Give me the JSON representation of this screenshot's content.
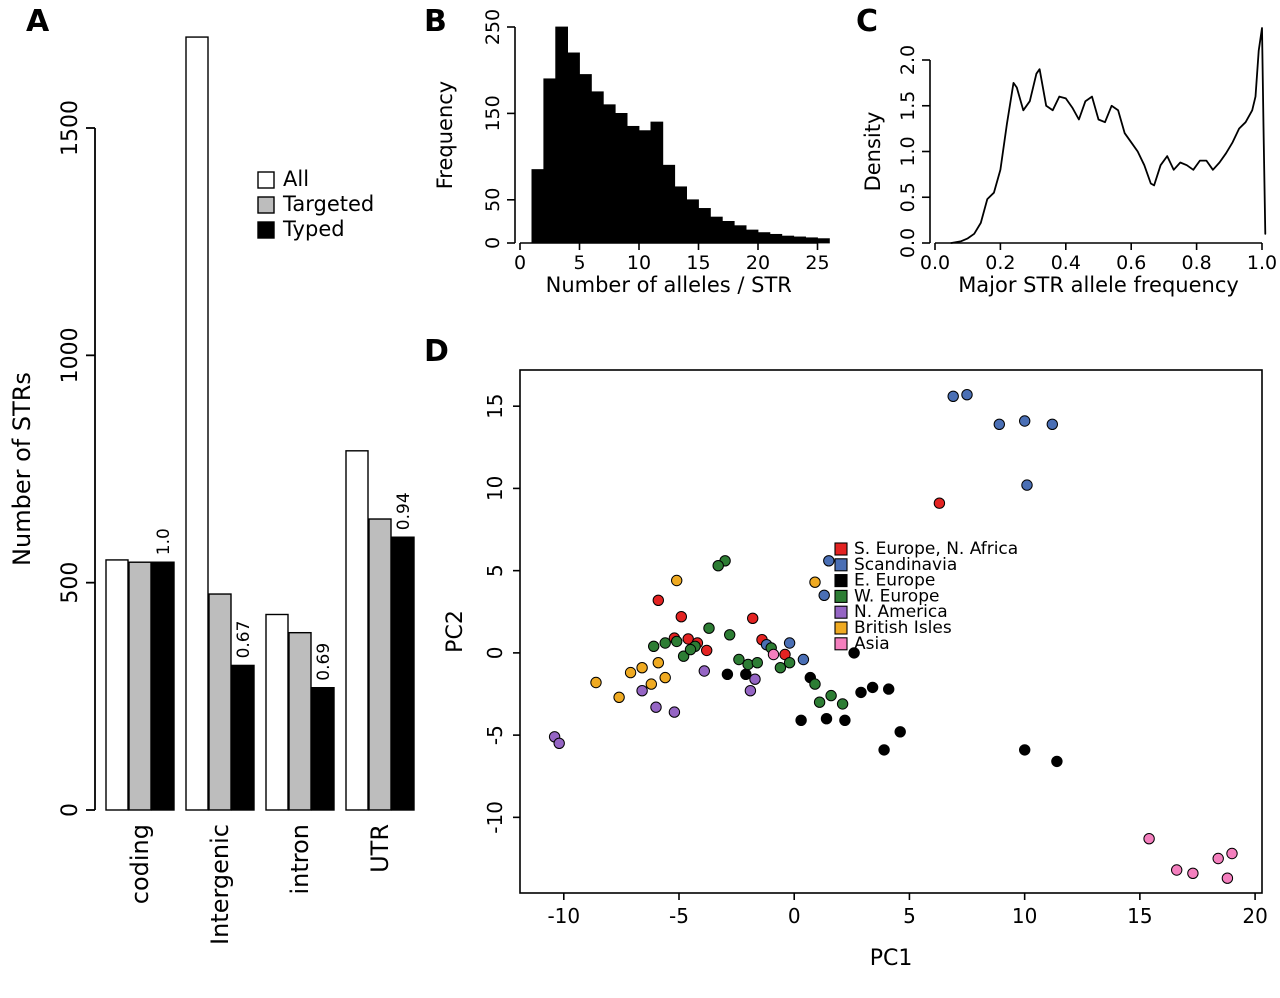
{
  "panel_labels": {
    "A": "A",
    "B": "B",
    "C": "C",
    "D": "D"
  },
  "chart_data": [
    {
      "id": "A",
      "type": "bar",
      "title": "",
      "xlabel": "",
      "ylabel": "Number of STRs",
      "categories": [
        "coding",
        "Intergenic",
        "intron",
        "UTR"
      ],
      "series": [
        {
          "name": "All",
          "color": "#ffffff",
          "values": [
            550,
            1700,
            430,
            790
          ]
        },
        {
          "name": "Targeted",
          "color": "#bdbdbd",
          "values": [
            545,
            475,
            390,
            640
          ]
        },
        {
          "name": "Typed",
          "color": "#000000",
          "values": [
            545,
            318,
            269,
            600
          ]
        }
      ],
      "ratio_annotations": [
        "1.0",
        "0.67",
        "0.69",
        "0.94"
      ],
      "yticks": [
        0,
        500,
        1000,
        1500
      ],
      "ylim": [
        0,
        1500
      ],
      "legend_position": "upper-left-inset"
    },
    {
      "id": "B",
      "type": "histogram",
      "title": "",
      "xlabel": "Number of alleles / STR",
      "ylabel": "Frequency",
      "bin_start": 1,
      "bin_width": 1,
      "counts": [
        85,
        190,
        250,
        220,
        195,
        175,
        160,
        150,
        135,
        130,
        140,
        90,
        65,
        50,
        40,
        30,
        25,
        20,
        15,
        12,
        10,
        8,
        7,
        6,
        5
      ],
      "xticks": [
        0,
        5,
        10,
        15,
        20,
        25
      ],
      "yticks": [
        0,
        50,
        150,
        250
      ],
      "xlim": [
        0,
        26
      ],
      "ylim": [
        0,
        255
      ],
      "bar_color": "#000000"
    },
    {
      "id": "C",
      "type": "line",
      "title": "",
      "xlabel": "Major STR allele frequency",
      "ylabel": "Density",
      "xticks": [
        0,
        0.2,
        0.4,
        0.6,
        0.8,
        1
      ],
      "xtick_labels": [
        "0.0",
        "0.2",
        "0.4",
        "0.6",
        "0.8",
        "1.0"
      ],
      "yticks": [
        0,
        0.5,
        1,
        1.5,
        2
      ],
      "ytick_labels": [
        "0.0",
        "0.5",
        "1.0",
        "1.5",
        "2.0"
      ],
      "xlim": [
        0,
        1.02
      ],
      "ylim": [
        0,
        2.4
      ],
      "line_color": "#000000",
      "x": [
        0.05,
        0.08,
        0.1,
        0.12,
        0.14,
        0.16,
        0.18,
        0.2,
        0.22,
        0.24,
        0.25,
        0.27,
        0.29,
        0.31,
        0.32,
        0.34,
        0.36,
        0.38,
        0.4,
        0.42,
        0.44,
        0.46,
        0.48,
        0.5,
        0.52,
        0.54,
        0.56,
        0.58,
        0.6,
        0.62,
        0.64,
        0.66,
        0.67,
        0.69,
        0.71,
        0.73,
        0.75,
        0.77,
        0.79,
        0.81,
        0.83,
        0.85,
        0.87,
        0.89,
        0.91,
        0.93,
        0.95,
        0.97,
        0.98,
        0.99,
        1.0,
        1.005,
        1.01
      ],
      "y": [
        0.0,
        0.02,
        0.05,
        0.1,
        0.22,
        0.48,
        0.55,
        0.8,
        1.3,
        1.75,
        1.7,
        1.45,
        1.55,
        1.85,
        1.9,
        1.5,
        1.45,
        1.6,
        1.58,
        1.48,
        1.35,
        1.55,
        1.6,
        1.35,
        1.32,
        1.5,
        1.45,
        1.2,
        1.1,
        1.0,
        0.85,
        0.65,
        0.63,
        0.85,
        0.95,
        0.8,
        0.88,
        0.85,
        0.8,
        0.9,
        0.9,
        0.8,
        0.88,
        0.98,
        1.1,
        1.25,
        1.32,
        1.45,
        1.6,
        2.1,
        2.35,
        1.2,
        0.1
      ]
    },
    {
      "id": "D",
      "type": "scatter",
      "title": "",
      "xlabel": "PC1",
      "ylabel": "PC2",
      "xticks": [
        -10,
        -5,
        0,
        5,
        10,
        15,
        20
      ],
      "yticks": [
        -10,
        -5,
        0,
        5,
        10,
        15
      ],
      "xlim": [
        -11.9,
        20.3
      ],
      "ylim": [
        -14.6,
        17.2
      ],
      "point_outline": "#000000",
      "groups": [
        {
          "name": "S. Europe, N. Africa",
          "color": "#e32322",
          "points": [
            [
              -5.9,
              3.2
            ],
            [
              -4.9,
              2.2
            ],
            [
              -5.2,
              0.9
            ],
            [
              -4.6,
              0.85
            ],
            [
              -4.2,
              0.6
            ],
            [
              -3.8,
              0.15
            ],
            [
              -1.8,
              2.1
            ],
            [
              -1.4,
              0.8
            ],
            [
              -0.4,
              -0.1
            ],
            [
              6.3,
              9.1
            ]
          ]
        },
        {
          "name": "Scandinavia",
          "color": "#4a6fb5",
          "points": [
            [
              6.9,
              15.6
            ],
            [
              7.5,
              15.7
            ],
            [
              8.9,
              13.9
            ],
            [
              10.0,
              14.1
            ],
            [
              11.2,
              13.9
            ],
            [
              10.1,
              10.2
            ],
            [
              1.5,
              5.6
            ],
            [
              1.3,
              3.5
            ],
            [
              -0.2,
              0.6
            ],
            [
              0.4,
              -0.4
            ],
            [
              -1.2,
              0.5
            ]
          ]
        },
        {
          "name": "E. Europe",
          "color": "#000000",
          "points": [
            [
              -2.9,
              -1.3
            ],
            [
              -2.1,
              -1.3
            ],
            [
              2.6,
              0.0
            ],
            [
              0.7,
              -1.5
            ],
            [
              3.4,
              -2.1
            ],
            [
              2.9,
              -2.4
            ],
            [
              4.1,
              -2.2
            ],
            [
              0.3,
              -4.1
            ],
            [
              1.4,
              -4.0
            ],
            [
              2.2,
              -4.1
            ],
            [
              4.6,
              -4.8
            ],
            [
              3.9,
              -5.9
            ],
            [
              10.0,
              -5.9
            ],
            [
              11.4,
              -6.6
            ]
          ]
        },
        {
          "name": "W. Europe",
          "color": "#2d7d34",
          "points": [
            [
              -3.0,
              5.6
            ],
            [
              -3.3,
              5.3
            ],
            [
              -6.1,
              0.4
            ],
            [
              -5.6,
              0.6
            ],
            [
              -5.1,
              0.7
            ],
            [
              -4.8,
              -0.2
            ],
            [
              -4.3,
              0.4
            ],
            [
              -4.5,
              0.2
            ],
            [
              -3.7,
              1.5
            ],
            [
              -2.8,
              1.1
            ],
            [
              -2.4,
              -0.4
            ],
            [
              -2.0,
              -0.7
            ],
            [
              -1.6,
              -0.6
            ],
            [
              -1.0,
              0.3
            ],
            [
              -0.6,
              -0.9
            ],
            [
              0.9,
              -1.9
            ],
            [
              1.6,
              -2.6
            ],
            [
              2.1,
              -3.1
            ],
            [
              1.1,
              -3.0
            ],
            [
              -0.2,
              -0.6
            ]
          ]
        },
        {
          "name": "N. America",
          "color": "#9565c4",
          "points": [
            [
              -10.4,
              -5.1
            ],
            [
              -10.2,
              -5.5
            ],
            [
              -6.6,
              -2.3
            ],
            [
              -6.0,
              -3.3
            ],
            [
              -5.2,
              -3.6
            ],
            [
              -3.9,
              -1.1
            ],
            [
              -1.7,
              -1.6
            ],
            [
              -1.9,
              -2.3
            ]
          ]
        },
        {
          "name": "British Isles",
          "color": "#efaa22",
          "points": [
            [
              -8.6,
              -1.8
            ],
            [
              -7.6,
              -2.7
            ],
            [
              -7.1,
              -1.2
            ],
            [
              -6.6,
              -0.9
            ],
            [
              -6.2,
              -1.9
            ],
            [
              -5.9,
              -0.6
            ],
            [
              -5.6,
              -1.5
            ],
            [
              -5.1,
              4.4
            ],
            [
              0.9,
              4.3
            ]
          ]
        },
        {
          "name": "Asia",
          "color": "#f47fbe",
          "points": [
            [
              15.4,
              -11.3
            ],
            [
              16.6,
              -13.2
            ],
            [
              17.3,
              -13.4
            ],
            [
              18.4,
              -12.5
            ],
            [
              19.0,
              -12.2
            ],
            [
              18.8,
              -13.7
            ],
            [
              -0.9,
              -0.1
            ]
          ]
        }
      ]
    }
  ]
}
